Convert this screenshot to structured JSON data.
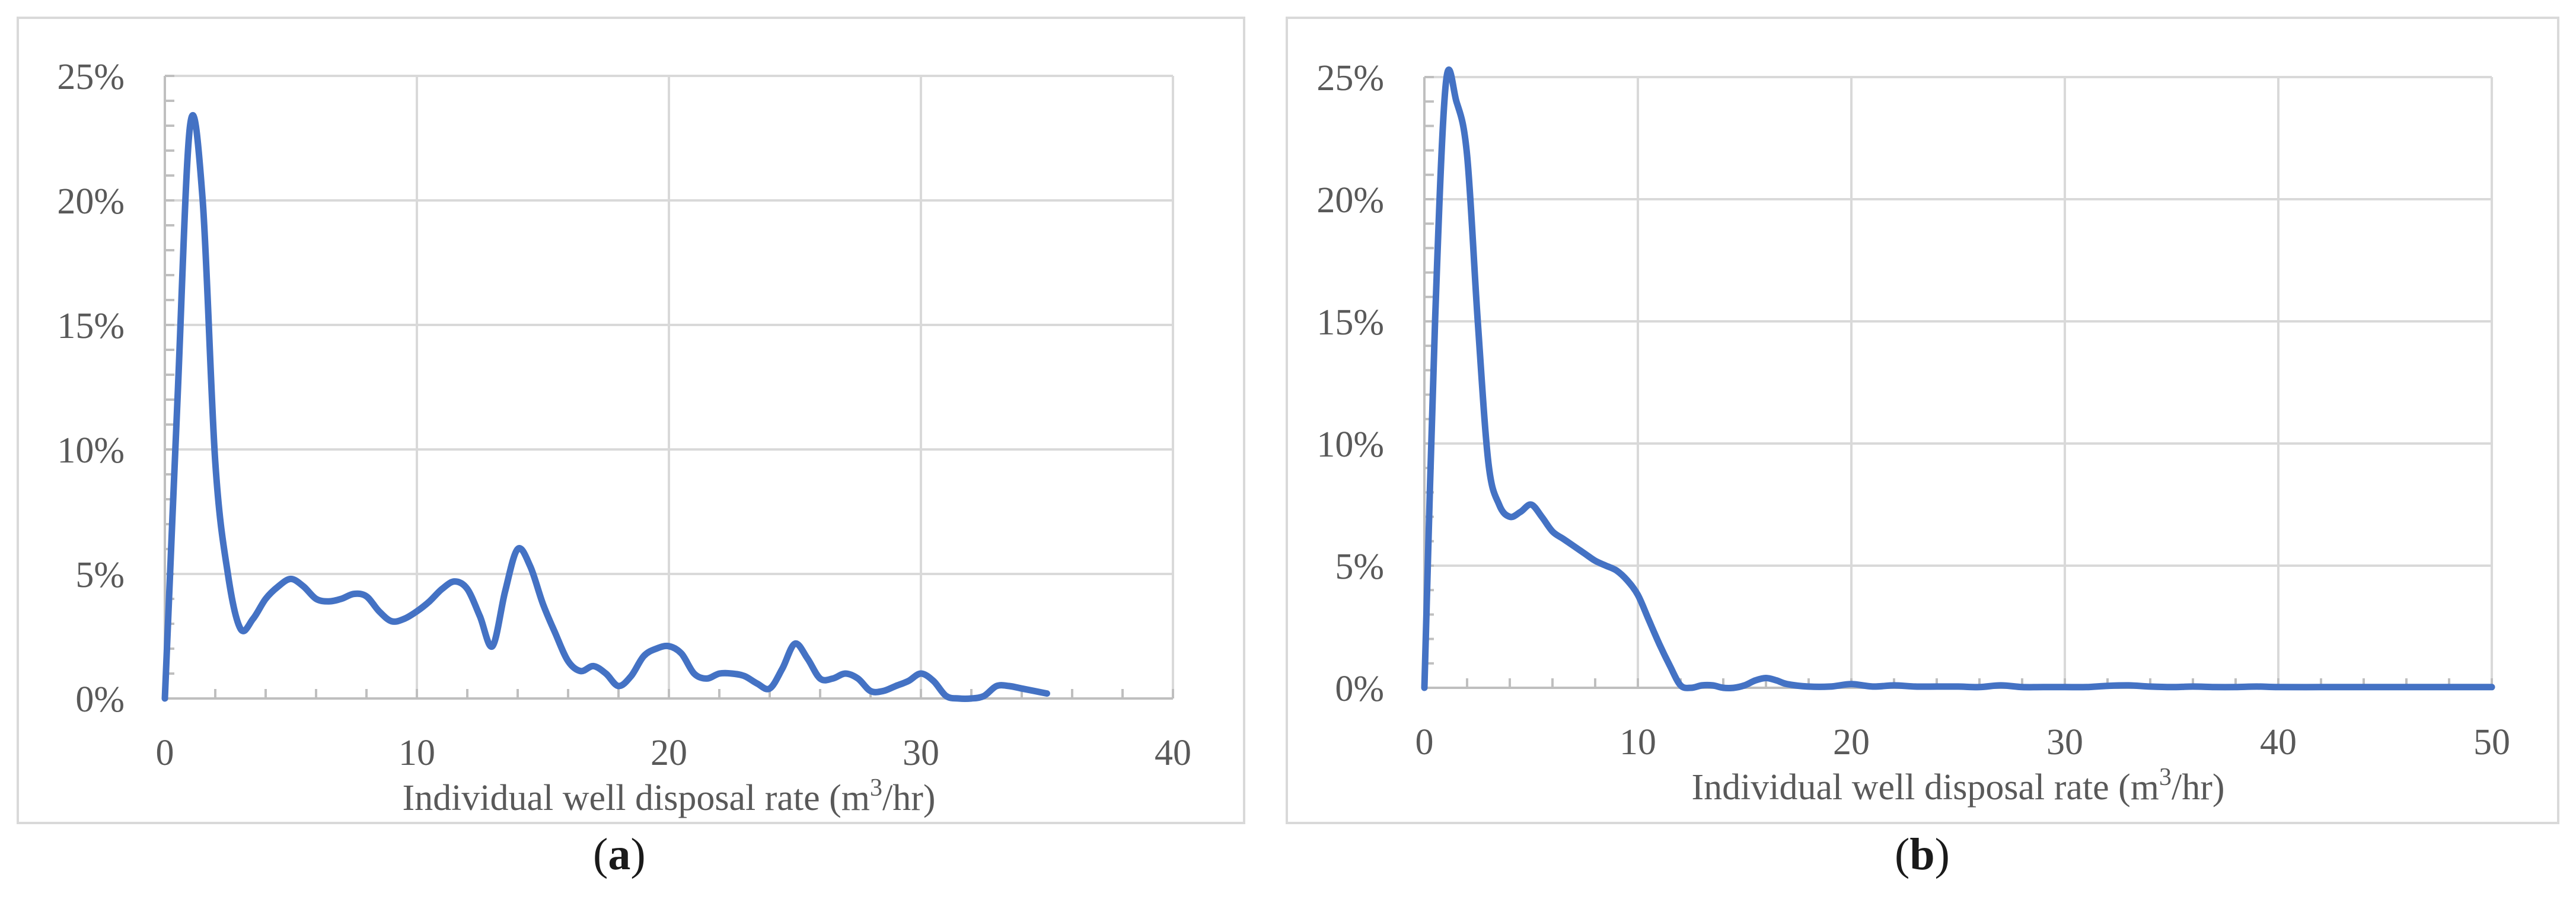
{
  "chart_data": [
    {
      "type": "line",
      "panel": "a",
      "xlabel": "Individual well disposal rate (m3/hr)",
      "xlabel_parts": [
        "Individual well disposal rate (m",
        "3",
        "/hr)"
      ],
      "ylabel": "",
      "xlim": [
        0,
        40
      ],
      "ylim": [
        0,
        25
      ],
      "x_ticks": [
        0,
        10,
        20,
        30,
        40
      ],
      "y_ticks": [
        0,
        5,
        10,
        15,
        20,
        25
      ],
      "x_tick_labels": [
        "0",
        "10",
        "20",
        "30",
        "40"
      ],
      "y_tick_labels": [
        "0%",
        "5%",
        "10%",
        "15%",
        "20%",
        "25%"
      ],
      "grid": true,
      "line_color": "#4472C4",
      "series": [
        {
          "x": [
            0,
            0.5,
            1,
            1.5,
            2,
            2.5,
            3,
            3.5,
            4,
            4.5,
            5,
            5.5,
            6,
            6.5,
            7,
            7.5,
            8,
            8.5,
            9,
            9.5,
            10,
            10.5,
            11,
            11.5,
            12,
            12.5,
            13,
            13.5,
            14,
            14.5,
            15,
            15.5,
            16,
            16.5,
            17,
            17.5,
            18,
            18.5,
            19,
            19.5,
            20,
            20.5,
            21,
            21.5,
            22,
            22.5,
            23,
            23.5,
            24,
            24.5,
            25,
            25.5,
            26,
            26.5,
            27,
            27.5,
            28,
            28.5,
            29,
            29.5,
            30,
            30.5,
            31,
            31.5,
            32,
            32.5,
            33,
            33.5,
            34,
            34.5,
            35
          ],
          "y": [
            0,
            12,
            23,
            20,
            9.5,
            5,
            2.8,
            3.2,
            4,
            4.5,
            4.8,
            4.5,
            4,
            3.9,
            4,
            4.2,
            4.1,
            3.5,
            3.1,
            3.2,
            3.5,
            3.9,
            4.4,
            4.7,
            4.4,
            3.3,
            2.1,
            4.3,
            6,
            5.3,
            3.8,
            2.6,
            1.5,
            1.1,
            1.3,
            1.0,
            0.5,
            0.9,
            1.7,
            2.0,
            2.1,
            1.8,
            1.0,
            0.8,
            1.0,
            1.0,
            0.9,
            0.6,
            0.4,
            1.2,
            2.2,
            1.6,
            0.8,
            0.8,
            1.0,
            0.8,
            0.3,
            0.3,
            0.5,
            0.7,
            1.0,
            0.7,
            0.1,
            0,
            0,
            0.1,
            0.5,
            0.5,
            0.4,
            0.3,
            0.2
          ]
        }
      ]
    },
    {
      "type": "line",
      "panel": "b",
      "xlabel": "Individual well disposal rate (m3/hr)",
      "xlabel_parts": [
        "Individual well disposal rate (m",
        "3",
        "/hr)"
      ],
      "ylabel": "",
      "xlim": [
        0,
        50
      ],
      "ylim": [
        0,
        25
      ],
      "x_ticks": [
        0,
        10,
        20,
        30,
        40,
        50
      ],
      "y_ticks": [
        0,
        5,
        10,
        15,
        20,
        25
      ],
      "x_tick_labels": [
        "0",
        "10",
        "20",
        "30",
        "40",
        "50"
      ],
      "y_tick_labels": [
        "0%",
        "5%",
        "10%",
        "15%",
        "20%",
        "25%"
      ],
      "grid": true,
      "line_color": "#4472C4",
      "series": [
        {
          "x": [
            0,
            0.5,
            1,
            1.5,
            2,
            2.5,
            3,
            3.5,
            4,
            4.5,
            5,
            5.5,
            6,
            6.5,
            7,
            7.5,
            8,
            8.5,
            9,
            9.5,
            10,
            10.5,
            11,
            11.5,
            12,
            12.5,
            13,
            13.5,
            14,
            14.5,
            15,
            15.5,
            16,
            16.5,
            17,
            18,
            19,
            20,
            21,
            22,
            23,
            24,
            25,
            26,
            27,
            28,
            29,
            30,
            31,
            32,
            33,
            34,
            35,
            36,
            37,
            38,
            39,
            40,
            42,
            44,
            46,
            48,
            50
          ],
          "y": [
            0,
            15,
            24.7,
            24,
            21.8,
            15,
            9.2,
            7.5,
            7,
            7.2,
            7.5,
            7,
            6.4,
            6.1,
            5.8,
            5.5,
            5.2,
            5.0,
            4.8,
            4.4,
            3.8,
            2.8,
            1.8,
            0.9,
            0.1,
            0,
            0.1,
            0.1,
            0,
            0,
            0.1,
            0.3,
            0.4,
            0.3,
            0.15,
            0.05,
            0.05,
            0.15,
            0.05,
            0.1,
            0.05,
            0.05,
            0.05,
            0.03,
            0.1,
            0.03,
            0.03,
            0.03,
            0.03,
            0.08,
            0.1,
            0.05,
            0.03,
            0.05,
            0.03,
            0.03,
            0.05,
            0.03,
            0.03,
            0.03,
            0.03,
            0.03,
            0.03
          ]
        }
      ]
    }
  ],
  "captions": {
    "a": {
      "open": "(",
      "letter": "a",
      "close": ")"
    },
    "b": {
      "open": "(",
      "letter": "b",
      "close": ")"
    }
  }
}
